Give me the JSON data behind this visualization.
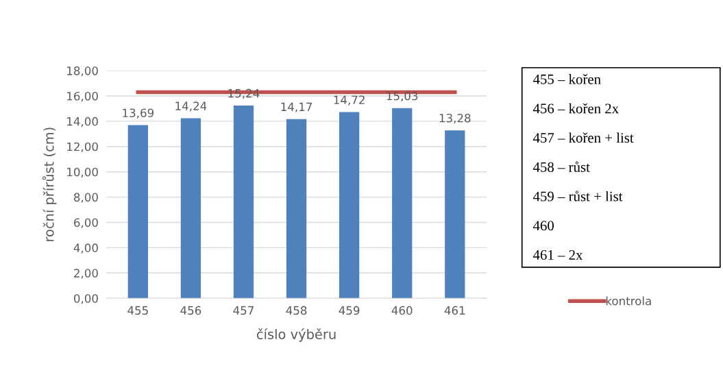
{
  "chart_data": {
    "type": "bar",
    "xlabel": "číslo výběru",
    "ylabel": "roční přírůst (cm)",
    "categories": [
      "455",
      "456",
      "457",
      "458",
      "459",
      "460",
      "461"
    ],
    "series": [
      {
        "color": "#4f81bd",
        "values": [
          13.69,
          14.24,
          15.24,
          14.17,
          14.72,
          15.03,
          13.28
        ],
        "value_labels": [
          "13,69",
          "14,24",
          "15,24",
          "14,17",
          "14,72",
          "15,03",
          "13,28"
        ]
      },
      {
        "type": "line",
        "name": "kontrola",
        "color": "#c0504d",
        "values": [
          16.3,
          16.3,
          16.3,
          16.3,
          16.3,
          16.3,
          16.3
        ]
      }
    ],
    "ylim": [
      0,
      18
    ],
    "yticks": [
      {
        "value": 0,
        "label": "0,00"
      },
      {
        "value": 2,
        "label": "2,00"
      },
      {
        "value": 4,
        "label": "4,00"
      },
      {
        "value": 6,
        "label": "6,00"
      },
      {
        "value": 8,
        "label": "8,00"
      },
      {
        "value": 10,
        "label": "10,00"
      },
      {
        "value": 12,
        "label": "12,00"
      },
      {
        "value": 14,
        "label": "14,00"
      },
      {
        "value": 16,
        "label": "16,00"
      },
      {
        "value": 18,
        "label": "18,00"
      }
    ],
    "grid": "y",
    "legend": "right",
    "marker": "none",
    "annotations": [
      "455 – kořen",
      "456 – kořen 2x",
      "457 – kořen + list",
      "458 – růst",
      "459 – růst + list",
      "460",
      "461 – 2x"
    ]
  }
}
